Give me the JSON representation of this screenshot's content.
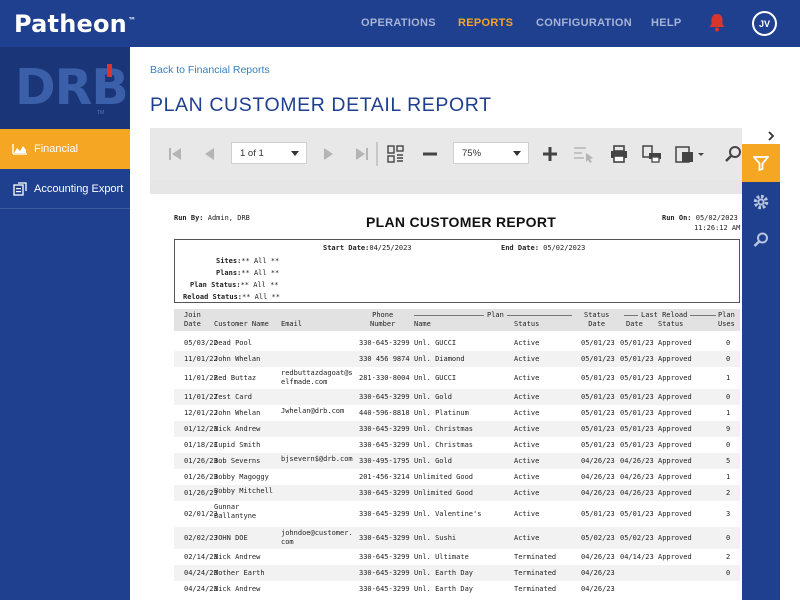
{
  "app": {
    "brand": "Patheon",
    "brand_tm": "™",
    "nav": [
      {
        "label": "OPERATIONS"
      },
      {
        "label": "REPORTS"
      },
      {
        "label": "CONFIGURATION"
      },
      {
        "label": "HELP"
      }
    ],
    "avatar_initials": "JV",
    "accent": "#f5a623",
    "primary": "#1f3f8f"
  },
  "sidebar": {
    "logo": "DRB",
    "logo_tm": "TM",
    "items": [
      {
        "label": "Financial",
        "icon": "area-chart-icon"
      },
      {
        "label": "Accounting Export",
        "icon": "export-icon"
      }
    ]
  },
  "main": {
    "back_link": "Back to Financial Reports",
    "title": "PLAN CUSTOMER DETAIL REPORT"
  },
  "toolbar": {
    "page": "1 of 1",
    "zoom": "75%"
  },
  "report": {
    "title": "PLAN CUSTOMER REPORT",
    "run_by_label": "Run By:",
    "run_by": "Admin, DRB",
    "run_on_label": "Run On:",
    "run_on_date": "05/02/2023",
    "run_on_time": "11:26:12 AM",
    "start_date_label": "Start Date:",
    "start_date": "04/25/2023",
    "end_date_label": "End Date:",
    "end_date": "05/02/2023",
    "filters": [
      {
        "label": "Sites:",
        "value": "** All **"
      },
      {
        "label": "Plans:",
        "value": "** All **"
      },
      {
        "label": "Plan Status:",
        "value": "** All **"
      },
      {
        "label": "Reload Status:",
        "value": "** All **"
      }
    ],
    "group_headers": {
      "plan": "Plan",
      "last_reload": "Last Reload"
    },
    "columns": {
      "join": "Join\nDate",
      "customer": "Customer Name",
      "email": "Email",
      "phone": "Phone\nNumber",
      "plan_name": "Name",
      "plan_status": "Status",
      "status_date": "Status\nDate",
      "reload_date": "Date",
      "reload_status": "Status",
      "plan_uses": "Plan\nUses"
    },
    "rows": [
      {
        "join": "05/03/22",
        "customer": "Dead Pool",
        "email": "",
        "phone": "330-645-3299",
        "plan": "Unl. GUCCI",
        "status": "Active",
        "status_date": "05/01/23",
        "reload_date": "05/01/23",
        "reload_status": "Approved",
        "uses": "0"
      },
      {
        "join": "11/01/22",
        "customer": "John Whelan",
        "email": "",
        "phone": "330 456 9874",
        "plan": "Unl. Diamond",
        "status": "Active",
        "status_date": "05/01/23",
        "reload_date": "05/01/23",
        "reload_status": "Approved",
        "uses": "0"
      },
      {
        "join": "11/01/22",
        "customer": "Red Buttaz",
        "email": "redbuttazdagoat@s elfmade.com",
        "phone": "281-330-8004",
        "plan": "Unl. GUCCI",
        "status": "Active",
        "status_date": "05/01/23",
        "reload_date": "05/01/23",
        "reload_status": "Approved",
        "uses": "1"
      },
      {
        "join": "11/01/22",
        "customer": "Test Card",
        "email": "",
        "phone": "330-645-3299",
        "plan": "Unl. Gold",
        "status": "Active",
        "status_date": "05/01/23",
        "reload_date": "05/01/23",
        "reload_status": "Approved",
        "uses": "0"
      },
      {
        "join": "12/01/22",
        "customer": "John  Whelan",
        "email": "Jwhelan@drb.com",
        "phone": "440-596-8818",
        "plan": "Unl. Platinum",
        "status": "Active",
        "status_date": "05/01/23",
        "reload_date": "05/01/23",
        "reload_status": "Approved",
        "uses": "1"
      },
      {
        "join": "01/12/23",
        "customer": "Nick Andrew",
        "email": "",
        "phone": "330-645-3299",
        "plan": "Unl. Christmas",
        "status": "Active",
        "status_date": "05/01/23",
        "reload_date": "05/01/23",
        "reload_status": "Approved",
        "uses": "9"
      },
      {
        "join": "01/18/23",
        "customer": "Cupid Smith",
        "email": "",
        "phone": "330-645-3299",
        "plan": "Unl. Christmas",
        "status": "Active",
        "status_date": "05/01/23",
        "reload_date": "05/01/23",
        "reload_status": "Approved",
        "uses": "0"
      },
      {
        "join": "01/26/23",
        "customer": "Bob Severns",
        "email": "bjsevern$@drb.com",
        "phone": "330-495-1795",
        "plan": "Unl. Gold",
        "status": "Active",
        "status_date": "04/26/23",
        "reload_date": "04/26/23",
        "reload_status": "Approved",
        "uses": "5"
      },
      {
        "join": "01/26/23",
        "customer": "Bobby Magoggy",
        "email": "",
        "phone": "201-456-3214",
        "plan": "Unlimited Good",
        "status": "Active",
        "status_date": "04/26/23",
        "reload_date": "04/26/23",
        "reload_status": "Approved",
        "uses": "1"
      },
      {
        "join": "01/26/23",
        "customer": "Bobby Mitchell",
        "email": "",
        "phone": "330-645-3299",
        "plan": "Unlimited Good",
        "status": "Active",
        "status_date": "04/26/23",
        "reload_date": "04/26/23",
        "reload_status": "Approved",
        "uses": "2"
      },
      {
        "join": "02/01/23",
        "customer": "Gunnar Ballantyne",
        "email": "",
        "phone": "330-645-3299",
        "plan": "Unl. Valentine's",
        "status": "Active",
        "status_date": "05/01/23",
        "reload_date": "05/01/23",
        "reload_status": "Approved",
        "uses": "3"
      },
      {
        "join": "02/02/23",
        "customer": "JOHN DOE",
        "email": "johndoe@customer. com",
        "phone": "330-645-3299",
        "plan": "Unl. Sushi",
        "status": "Active",
        "status_date": "05/02/23",
        "reload_date": "05/02/23",
        "reload_status": "Approved",
        "uses": "0"
      },
      {
        "join": "02/14/23",
        "customer": "Nick Andrew",
        "email": "",
        "phone": "330-645-3299",
        "plan": "Unl. Ultimate",
        "status": "Terminated",
        "status_date": "04/26/23",
        "reload_date": "04/14/23",
        "reload_status": "Approved",
        "uses": "2"
      },
      {
        "join": "04/24/23",
        "customer": "Mother Earth",
        "email": "",
        "phone": "330-645-3299",
        "plan": "Unl. Earth Day",
        "status": "Terminated",
        "status_date": "04/26/23",
        "reload_date": "",
        "reload_status": "",
        "uses": "0"
      },
      {
        "join": "04/24/23",
        "customer": "Nick Andrew",
        "email": "",
        "phone": "330-645-3299",
        "plan": "Unl. Earth Day",
        "status": "Terminated",
        "status_date": "04/26/23",
        "reload_date": "",
        "reload_status": "",
        "uses": ""
      }
    ]
  }
}
